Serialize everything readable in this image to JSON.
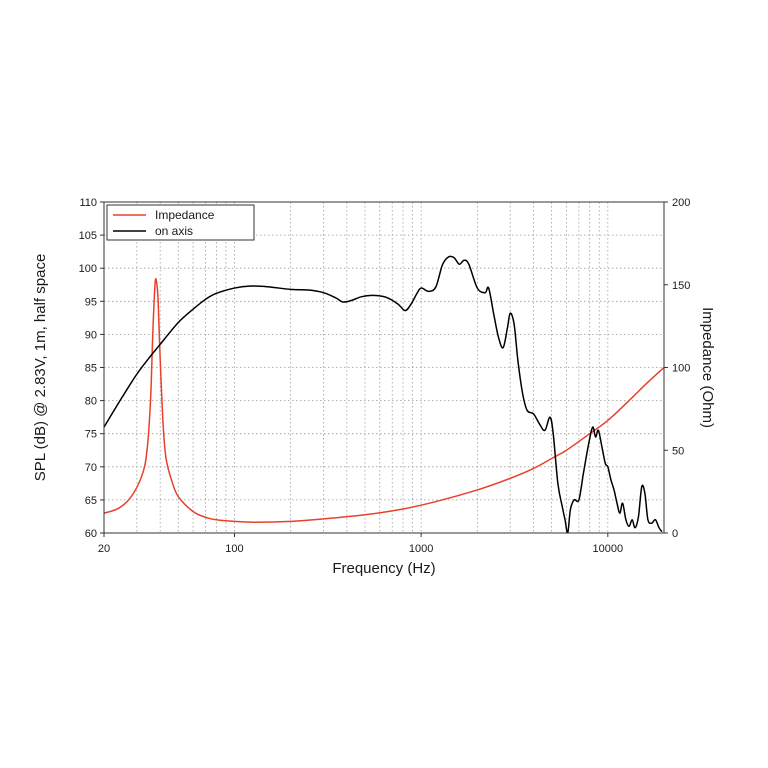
{
  "chart_data": {
    "type": "line",
    "xscale": "log",
    "xlim": [
      20,
      20000
    ],
    "ylim_left": [
      60,
      110
    ],
    "ylim_right": [
      0,
      200
    ],
    "xlabel": "Frequency (Hz)",
    "ylabel_left": "SPL (dB) @ 2.83V, 1m, half space",
    "ylabel_right": "Impedance (Ohm)",
    "x_ticks": [
      20,
      100,
      1000,
      10000
    ],
    "x_tick_labels": [
      "20",
      "100",
      "1000",
      "10000"
    ],
    "left_ticks": [
      60,
      65,
      70,
      75,
      80,
      85,
      90,
      95,
      100,
      105,
      110
    ],
    "left_tick_labels": [
      "60",
      "65",
      "70",
      "75",
      "80",
      "85",
      "90",
      "95",
      "100",
      "105",
      "110"
    ],
    "right_ticks": [
      0,
      50,
      100,
      150,
      200
    ],
    "right_tick_labels": [
      "0",
      "50",
      "100",
      "150",
      "200"
    ],
    "grid": true,
    "grid_style": "dotted",
    "legend": "top-left",
    "series": [
      {
        "name": "Impedance",
        "color": "#e8402a",
        "axis": "right",
        "points": [
          [
            20,
            12
          ],
          [
            24,
            15
          ],
          [
            28,
            22
          ],
          [
            32,
            35
          ],
          [
            34,
            50
          ],
          [
            35.5,
            80
          ],
          [
            36.5,
            120
          ],
          [
            37.5,
            150
          ],
          [
            38.2,
            152
          ],
          [
            39,
            140
          ],
          [
            40,
            105
          ],
          [
            41.5,
            65
          ],
          [
            43,
            45
          ],
          [
            46,
            32
          ],
          [
            50,
            22
          ],
          [
            60,
            13
          ],
          [
            70,
            9.5
          ],
          [
            80,
            8
          ],
          [
            100,
            7
          ],
          [
            130,
            6.5
          ],
          [
            200,
            7
          ],
          [
            300,
            8.5
          ],
          [
            500,
            11
          ],
          [
            800,
            14.5
          ],
          [
            1200,
            19
          ],
          [
            2000,
            26
          ],
          [
            3000,
            33
          ],
          [
            4000,
            39
          ],
          [
            5000,
            45
          ],
          [
            6000,
            50
          ],
          [
            8000,
            60
          ],
          [
            10000,
            68
          ],
          [
            13000,
            80
          ],
          [
            16000,
            90
          ],
          [
            20000,
            100
          ]
        ]
      },
      {
        "name": "on axis",
        "color": "#000000",
        "axis": "left",
        "points": [
          [
            20,
            76
          ],
          [
            25,
            80.5
          ],
          [
            30,
            84
          ],
          [
            35,
            86.5
          ],
          [
            40,
            88.5
          ],
          [
            50,
            91.8
          ],
          [
            60,
            93.8
          ],
          [
            70,
            95.3
          ],
          [
            80,
            96.2
          ],
          [
            100,
            97
          ],
          [
            120,
            97.3
          ],
          [
            150,
            97.2
          ],
          [
            200,
            96.8
          ],
          [
            250,
            96.7
          ],
          [
            300,
            96.3
          ],
          [
            350,
            95.5
          ],
          [
            380,
            94.9
          ],
          [
            420,
            95.1
          ],
          [
            480,
            95.7
          ],
          [
            550,
            95.9
          ],
          [
            650,
            95.6
          ],
          [
            750,
            94.6
          ],
          [
            820,
            93.6
          ],
          [
            880,
            94.5
          ],
          [
            950,
            96.2
          ],
          [
            1000,
            97.0
          ],
          [
            1100,
            96.5
          ],
          [
            1200,
            97.2
          ],
          [
            1300,
            100.5
          ],
          [
            1400,
            101.7
          ],
          [
            1500,
            101.6
          ],
          [
            1600,
            100.6
          ],
          [
            1700,
            101.2
          ],
          [
            1800,
            100.6
          ],
          [
            2000,
            97.0
          ],
          [
            2200,
            96.3
          ],
          [
            2300,
            97.0
          ],
          [
            2450,
            93.0
          ],
          [
            2600,
            89.5
          ],
          [
            2750,
            88.0
          ],
          [
            2900,
            91.0
          ],
          [
            3000,
            93.2
          ],
          [
            3150,
            91.5
          ],
          [
            3300,
            86.0
          ],
          [
            3500,
            81.0
          ],
          [
            3700,
            78.5
          ],
          [
            4000,
            78.0
          ],
          [
            4300,
            76.5
          ],
          [
            4600,
            75.5
          ],
          [
            4900,
            77.5
          ],
          [
            5100,
            75.0
          ],
          [
            5400,
            67.5
          ],
          [
            5700,
            64.0
          ],
          [
            5900,
            62.0
          ],
          [
            6100,
            60.0
          ],
          [
            6300,
            63.5
          ],
          [
            6600,
            65.0
          ],
          [
            7000,
            65.0
          ],
          [
            7400,
            69.0
          ],
          [
            7900,
            73.5
          ],
          [
            8300,
            76.0
          ],
          [
            8600,
            74.5
          ],
          [
            8900,
            75.5
          ],
          [
            9300,
            73.0
          ],
          [
            9700,
            70.5
          ],
          [
            10000,
            70.0
          ],
          [
            10400,
            68.0
          ],
          [
            10800,
            66.5
          ],
          [
            11200,
            64.5
          ],
          [
            11600,
            63.0
          ],
          [
            12000,
            64.5
          ],
          [
            12500,
            62.0
          ],
          [
            13000,
            61.0
          ],
          [
            13500,
            62.0
          ],
          [
            14000,
            60.8
          ],
          [
            14600,
            62.5
          ],
          [
            15200,
            67.0
          ],
          [
            15800,
            66.0
          ],
          [
            16400,
            62.0
          ],
          [
            17200,
            61.5
          ],
          [
            18000,
            62.0
          ],
          [
            18800,
            60.8
          ],
          [
            19500,
            60.2
          ]
        ]
      }
    ]
  }
}
